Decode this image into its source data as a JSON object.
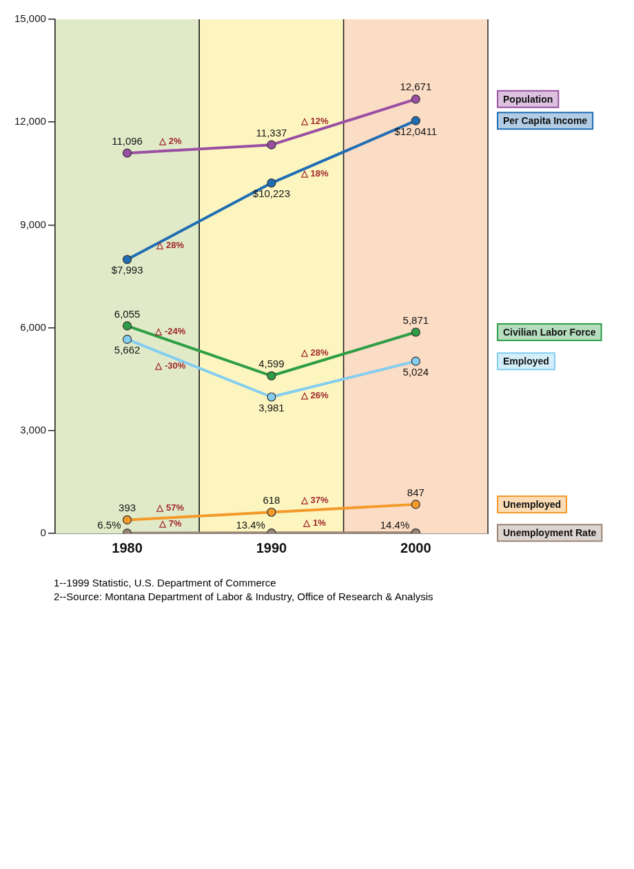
{
  "chart_data": {
    "type": "line",
    "categories": [
      "1980",
      "1990",
      "2000"
    ],
    "ylim": [
      0,
      15000
    ],
    "yticks": [
      {
        "value": 0,
        "label": "0"
      },
      {
        "value": 3000,
        "label": "3,000"
      },
      {
        "value": 6000,
        "label": "6,000"
      },
      {
        "value": 9000,
        "label": "9,000"
      },
      {
        "value": 12000,
        "label": "12,000"
      },
      {
        "value": 15000,
        "label": "15,000"
      }
    ],
    "marker": "circle",
    "series": [
      {
        "name": "Population",
        "color": "#9a4fa3",
        "values": [
          11096,
          11337,
          12671
        ],
        "value_labels": [
          "11,096",
          "11,337",
          "12,671"
        ]
      },
      {
        "name": "Per Capita Income",
        "color": "#1f6db3",
        "values": [
          7993,
          10223,
          12041
        ],
        "value_labels": [
          "$7,993",
          "$10,223",
          "$12,0411"
        ]
      },
      {
        "name": "Civilian Labor Force",
        "color": "#2e9e46",
        "values": [
          6055,
          4599,
          5871
        ],
        "value_labels": [
          "6,055",
          "4,599",
          "5,871"
        ]
      },
      {
        "name": "Employed",
        "color": "#82cdf0",
        "values": [
          5662,
          3981,
          5024
        ],
        "value_labels": [
          "5,662",
          "3,981",
          "5,024"
        ]
      },
      {
        "name": "Unemployed",
        "color": "#f39a2b",
        "values": [
          393,
          618,
          847
        ],
        "value_labels": [
          "393",
          "618",
          "847"
        ]
      },
      {
        "name": "Unemployment Rate",
        "color": "#9a8474",
        "values": [
          6.5,
          13.4,
          14.4
        ],
        "value_labels": [
          "6.5%",
          "13.4%",
          "14.4%"
        ]
      }
    ],
    "bands": [
      {
        "axis": "x",
        "from": "1980",
        "to": "1980",
        "color": "#e1eac8"
      },
      {
        "axis": "x",
        "from": "1990",
        "to": "1990",
        "color": "#fcf5c0"
      },
      {
        "axis": "x",
        "from": "2000",
        "to": "2000",
        "color": "#fbdcc4"
      }
    ],
    "annotations": [
      "△ 2%",
      "△ 12%",
      "△ 28%",
      "△ 18%",
      "△ -24%",
      "△ 28%",
      "△ -30%",
      "△ 26%",
      "△ 57%",
      "△ 37%",
      "△ 7%",
      "△ 1%",
      "1--1999 Statistic, U.S. Department of Commerce",
      "2--Source: Montana Department of Labor & Industry, Office of Research & Analysis"
    ]
  }
}
